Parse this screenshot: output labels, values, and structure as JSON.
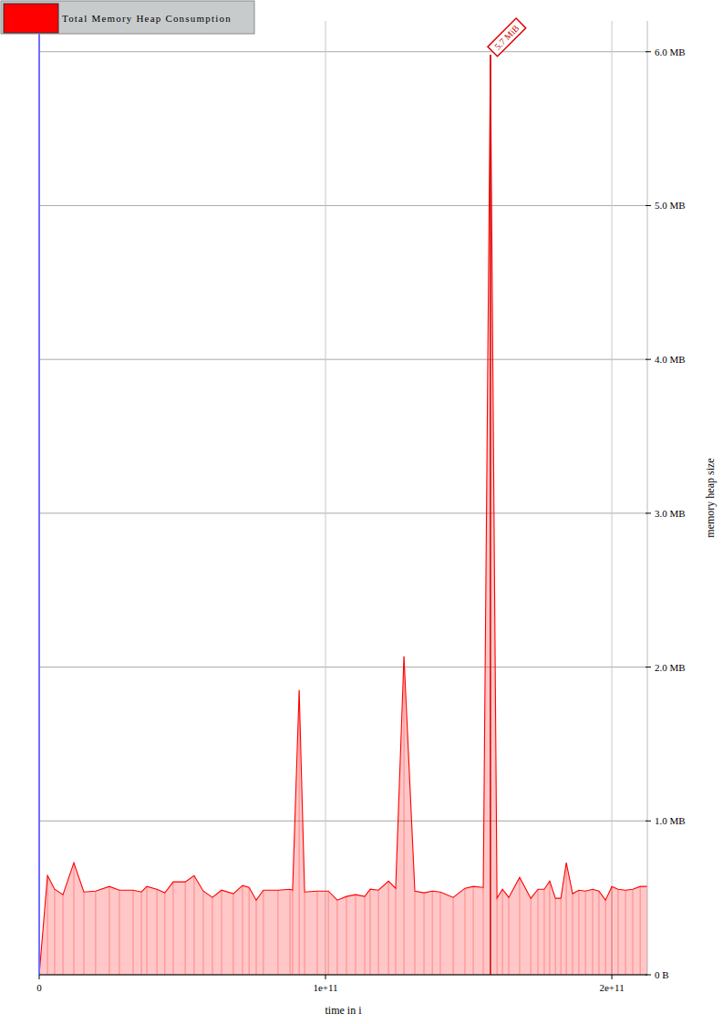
{
  "chart_data": {
    "type": "area",
    "legend": "upper left",
    "grid": true,
    "x_label": "time in i",
    "y_label": "memory heap size",
    "xlim": [
      0,
      212400000000.0
    ],
    "xticks": [
      0,
      {
        "value": 100000000000.0,
        "label": "1e+11"
      },
      {
        "value": 200000000000.0,
        "label": "2e+11"
      }
    ],
    "ylim": [
      0,
      6.2
    ],
    "yticks": [
      {
        "value": 0,
        "label": "0 B"
      },
      {
        "value": 1,
        "label": "1.0 MB"
      },
      {
        "value": 2,
        "label": "2.0 MB"
      },
      {
        "value": 3,
        "label": "3.0 MB"
      },
      {
        "value": 4,
        "label": "4.0 MB"
      },
      {
        "value": 5,
        "label": "5.0 MB"
      },
      {
        "value": 6,
        "label": "6.0 MB"
      }
    ],
    "annotations": [
      {
        "text": "5.7 MiB",
        "x": 157600000000.0,
        "y": 5.98
      }
    ],
    "series": [
      {
        "name": "Total Memory Heap Consumption",
        "color": "#ff0000",
        "x": [
          0,
          2900000000.0,
          5400000000.0,
          8300000000.0,
          12100000000.0,
          15600000000.0,
          19700000000.0,
          24500000000.0,
          28000000000.0,
          32800000000.0,
          35700000000.0,
          37600000000.0,
          41100000000.0,
          43900000000.0,
          46800000000.0,
          51000000000.0,
          54100000000.0,
          57300000000.0,
          60500000000.0,
          63700000000.0,
          67800000000.0,
          71000000000.0,
          73300000000.0,
          75800000000.0,
          78300000000.0,
          83400000000.0,
          87600000000.0,
          88500000000.0,
          90800000000.0,
          92700000000.0,
          97100000000.0,
          101000000000.0,
          104100000000.0,
          107300000000.0,
          110500000000.0,
          113700000000.0,
          115600000000.0,
          118500000000.0,
          122000000000.0,
          124500000000.0,
          127400000000.0,
          131200000000.0,
          134400000000.0,
          137300000000.0,
          140100000000.0,
          144600000000.0,
          148700000000.0,
          151600000000.0,
          155100000000.0,
          157600000000.0,
          159900000000.0,
          161800000000.0,
          164000000000.0,
          167800000000.0,
          171700000000.0,
          174200000000.0,
          176400000000.0,
          178300000000.0,
          180300000000.0,
          182200000000.0,
          184100000000.0,
          186300000000.0,
          188500000000.0,
          190800000000.0,
          193300000000.0,
          195500000000.0,
          197800000000.0,
          200000000000.0,
          202200000000.0,
          204800000000.0,
          207300000000.0,
          209900000000.0,
          212400000000.0
        ],
        "values": [
          0,
          0.645,
          0.556,
          0.521,
          0.728,
          0.538,
          0.544,
          0.574,
          0.55,
          0.55,
          0.538,
          0.574,
          0.556,
          0.533,
          0.604,
          0.604,
          0.645,
          0.544,
          0.503,
          0.55,
          0.527,
          0.58,
          0.568,
          0.485,
          0.55,
          0.55,
          0.556,
          0.55,
          1.85,
          0.538,
          0.544,
          0.544,
          0.485,
          0.509,
          0.521,
          0.509,
          0.556,
          0.55,
          0.609,
          0.562,
          2.07,
          0.544,
          0.533,
          0.544,
          0.538,
          0.503,
          0.562,
          0.574,
          0.568,
          5.98,
          0.497,
          0.556,
          0.503,
          0.633,
          0.497,
          0.556,
          0.556,
          0.609,
          0.497,
          0.497,
          0.728,
          0.527,
          0.55,
          0.544,
          0.556,
          0.544,
          0.485,
          0.574,
          0.556,
          0.55,
          0.556,
          0.574,
          0.574
        ]
      }
    ]
  }
}
